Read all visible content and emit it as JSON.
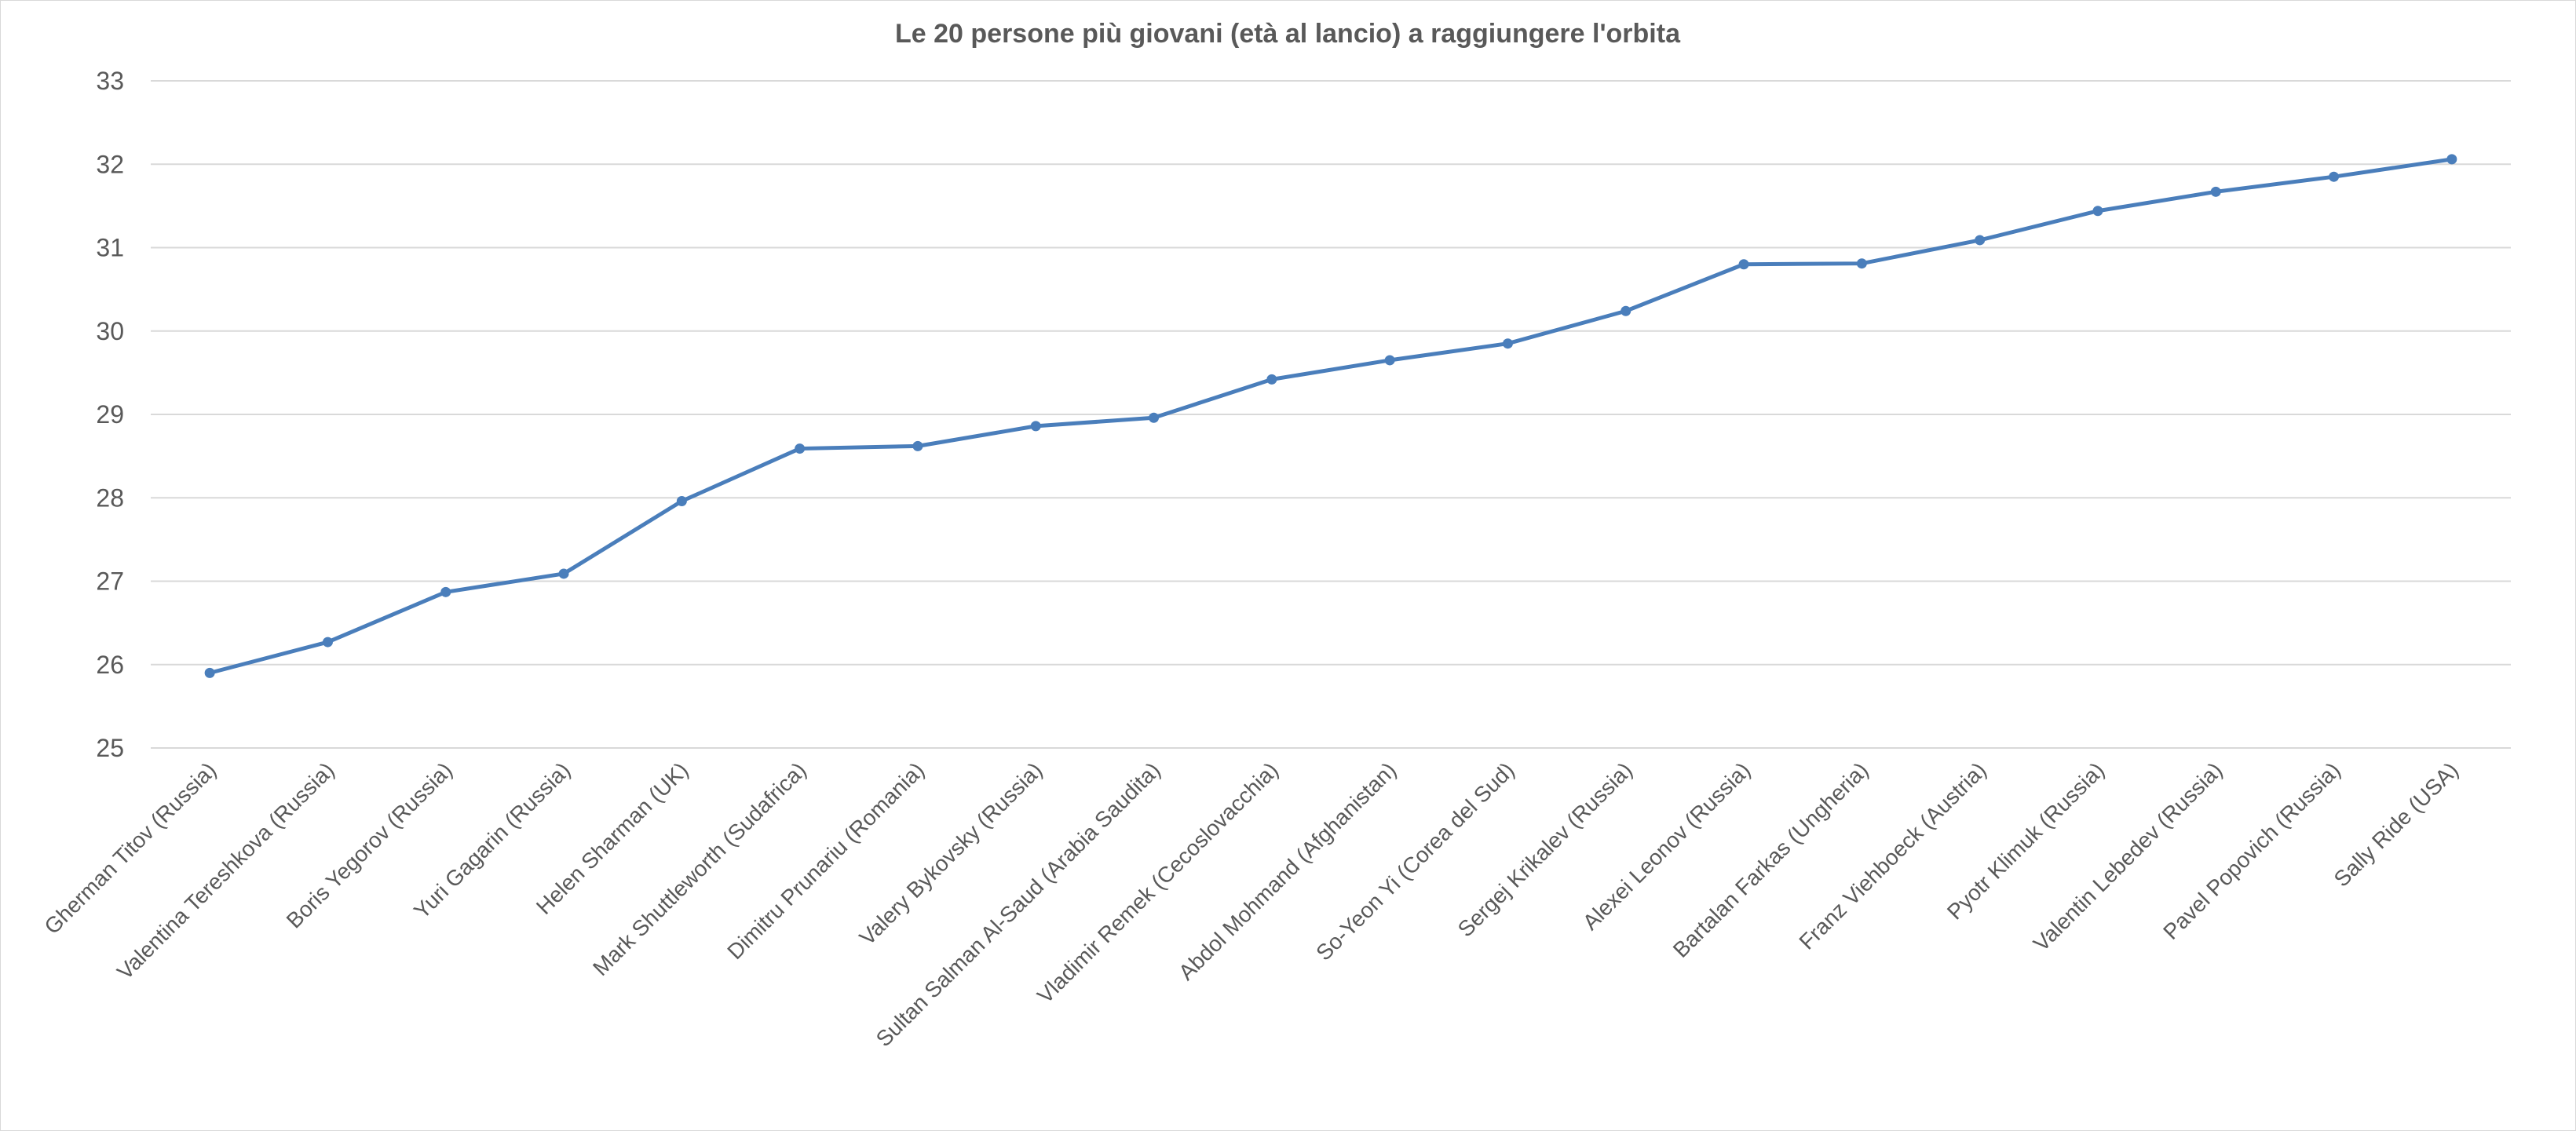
{
  "chart_data": {
    "type": "line",
    "title": "Le 20 persone più giovani (età al lancio) a raggiungere l'orbita",
    "xlabel": "",
    "ylabel": "",
    "ylim": [
      25,
      33
    ],
    "yticks": [
      25,
      26,
      27,
      28,
      29,
      30,
      31,
      32,
      33
    ],
    "grid": true,
    "legend": "none",
    "categories": [
      "Gherman Titov (Russia)",
      "Valentina Tereshkova (Russia)",
      "Boris Yegorov (Russia)",
      "Yuri Gagarin (Russia)",
      "Helen Sharman (UK)",
      "Mark Shuttleworth (Sudafrica)",
      "Dimitru Prunariu (Romania)",
      "Valery Bykovsky (Russia)",
      "Sultan Salman Al-Saud (Arabia Saudita)",
      "Vladimir Remek (Cecoslovacchia)",
      "Abdol Mohmand (Afghanistan)",
      "So-Yeon Yi (Corea del Sud)",
      "Sergej Krikalev (Russia)",
      "Alexei Leonov (Russia)",
      "Bartalan Farkas (Ungheria)",
      "Franz Viehboeck (Austria)",
      "Pyotr Klimuk (Russia)",
      "Valentin Lebedev (Russia)",
      "Pavel Popovich (Russia)",
      "Sally Ride (USA)"
    ],
    "series": [
      {
        "values": [
          25.9,
          26.27,
          26.87,
          27.09,
          27.96,
          28.59,
          28.62,
          28.86,
          28.96,
          29.42,
          29.65,
          29.85,
          30.24,
          30.8,
          30.81,
          31.09,
          31.44,
          31.67,
          31.85,
          32.06
        ],
        "color": "#4a7ebb"
      }
    ],
    "gridline_color": "#d9d9d9",
    "text_color": "#595959"
  }
}
